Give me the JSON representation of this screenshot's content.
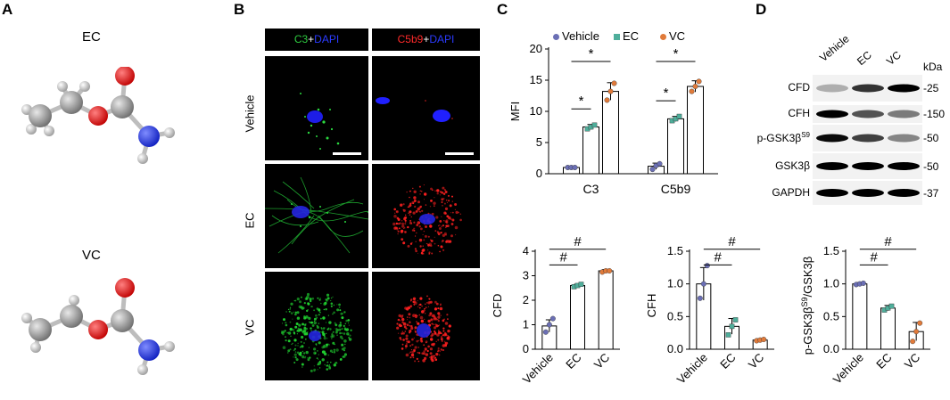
{
  "panels": {
    "A": {
      "letter": "A",
      "molecules": [
        {
          "label": "EC"
        },
        {
          "label": "VC"
        }
      ]
    },
    "B": {
      "letter": "B",
      "columns": [
        {
          "parts": [
            {
              "text": "C3",
              "color": "#2ecc40"
            },
            {
              "text": "+",
              "color": "#ffffff"
            },
            {
              "text": "DAPI",
              "color": "#2b3bff"
            }
          ]
        },
        {
          "parts": [
            {
              "text": "C5b9",
              "color": "#ff2a2a"
            },
            {
              "text": "+",
              "color": "#ffffff"
            },
            {
              "text": "DAPI",
              "color": "#2b3bff"
            }
          ]
        }
      ],
      "rows": [
        "Vehicle",
        "EC",
        "VC"
      ]
    },
    "C": {
      "letter": "C",
      "legend": [
        {
          "label": "Vehicle",
          "color": "#6b6fb5",
          "marker": "circle"
        },
        {
          "label": "EC",
          "color": "#4fae9b",
          "marker": "square"
        },
        {
          "label": "VC",
          "color": "#e07a3a",
          "marker": "circle"
        }
      ]
    },
    "D": {
      "letter": "D",
      "lanes": [
        "Vehicle",
        "EC",
        "VC"
      ],
      "kda": "kDa",
      "blots": [
        {
          "label": "CFD",
          "label_sup": "",
          "size": "-25"
        },
        {
          "label": "CFH",
          "label_sup": "",
          "size": "-150"
        },
        {
          "label": "p-GSK3β",
          "label_sup": "S9",
          "size": "-50"
        },
        {
          "label": "GSK3β",
          "label_sup": "",
          "size": "-50"
        },
        {
          "label": "GAPDH",
          "label_sup": "",
          "size": "-37"
        }
      ]
    }
  },
  "chart_data": [
    {
      "id": "mfi",
      "type": "bar",
      "ylabel": "MFI",
      "ylim": [
        0,
        20
      ],
      "yticks": [
        0,
        5,
        10,
        15,
        20
      ],
      "categories": [
        "C3",
        "C5b9"
      ],
      "series": [
        {
          "name": "Vehicle",
          "values": [
            1.0,
            1.2
          ],
          "points": [
            [
              1.0,
              1.0,
              1.0
            ],
            [
              0.7,
              1.3,
              1.6
            ]
          ],
          "errors": [
            0.1,
            0.5
          ]
        },
        {
          "name": "EC",
          "values": [
            7.5,
            8.8
          ],
          "points": [
            [
              7.2,
              7.5,
              7.8
            ],
            [
              8.5,
              8.8,
              9.2
            ]
          ],
          "errors": [
            0.4,
            0.4
          ]
        },
        {
          "name": "VC",
          "values": [
            13.2,
            14.0
          ],
          "points": [
            [
              11.8,
              13.2,
              14.5
            ],
            [
              13.2,
              14.0,
              14.8
            ]
          ],
          "errors": [
            1.4,
            0.9
          ]
        }
      ],
      "annotations": [
        "*",
        "*",
        "*",
        "*"
      ]
    },
    {
      "id": "cfd",
      "type": "bar",
      "ylabel": "CFD",
      "ylim": [
        0,
        4
      ],
      "yticks": [
        0,
        1,
        2,
        3,
        4
      ],
      "categories": [
        "Vehicle",
        "EC",
        "VC"
      ],
      "values": [
        0.95,
        2.6,
        3.2
      ],
      "points": [
        [
          0.7,
          1.0,
          1.25
        ],
        [
          2.55,
          2.6,
          2.65
        ],
        [
          3.15,
          3.2,
          3.2
        ]
      ],
      "errors": [
        0.25,
        0.05,
        0.05
      ],
      "annotations": [
        "#",
        "#"
      ]
    },
    {
      "id": "cfh",
      "type": "bar",
      "ylabel": "CFH",
      "ylim": [
        0,
        1.5
      ],
      "yticks": [
        0.0,
        0.5,
        1.0,
        1.5
      ],
      "categories": [
        "Vehicle",
        "EC",
        "VC"
      ],
      "values": [
        1.0,
        0.35,
        0.14
      ],
      "points": [
        [
          0.78,
          1.0,
          1.28
        ],
        [
          0.22,
          0.35,
          0.45
        ],
        [
          0.13,
          0.14,
          0.15
        ]
      ],
      "errors": [
        0.25,
        0.12,
        0.02
      ],
      "annotations": [
        "#",
        "#"
      ]
    },
    {
      "id": "pgsk",
      "type": "bar",
      "ylabel": "p-GSK3β",
      "ylabel_sup": "S9",
      "ylabel_tail": "/GSK3β",
      "ylim": [
        0,
        1.5
      ],
      "yticks": [
        0.0,
        0.5,
        1.0,
        1.5
      ],
      "categories": [
        "Vehicle",
        "EC",
        "VC"
      ],
      "values": [
        1.0,
        0.63,
        0.27
      ],
      "points": [
        [
          0.99,
          1.0,
          1.01
        ],
        [
          0.6,
          0.63,
          0.66
        ],
        [
          0.12,
          0.27,
          0.4
        ]
      ],
      "errors": [
        0.02,
        0.04,
        0.14
      ],
      "annotations": [
        "#",
        "#"
      ]
    }
  ]
}
